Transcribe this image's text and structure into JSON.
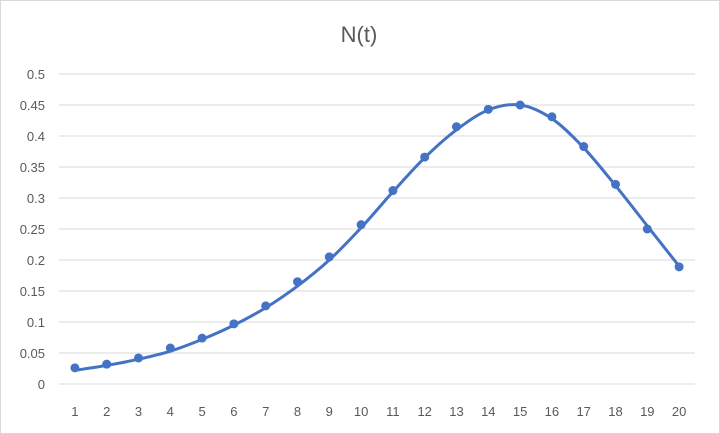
{
  "chart_data": {
    "type": "scatter",
    "title": "N(t)",
    "xlabel": "",
    "ylabel": "",
    "x": [
      1,
      2,
      3,
      4,
      5,
      6,
      7,
      8,
      9,
      10,
      11,
      12,
      13,
      14,
      15,
      16,
      17,
      18,
      19,
      20
    ],
    "xticks": [
      "1",
      "2",
      "3",
      "4",
      "5",
      "6",
      "7",
      "8",
      "9",
      "10",
      "11",
      "12",
      "13",
      "14",
      "15",
      "16",
      "17",
      "18",
      "19",
      "20"
    ],
    "yticks": [
      "0",
      "0.05",
      "0.1",
      "0.15",
      "0.2",
      "0.25",
      "0.3",
      "0.35",
      "0.4",
      "0.45",
      "0.5"
    ],
    "ylim": [
      0,
      0.5
    ],
    "grid": true,
    "series": [
      {
        "kind": "markers",
        "color": "#4472c4",
        "values": [
          0.026,
          0.032,
          0.042,
          0.058,
          0.074,
          0.097,
          0.126,
          0.165,
          0.205,
          0.257,
          0.312,
          0.366,
          0.415,
          0.443,
          0.45,
          0.431,
          0.383,
          0.322,
          0.25,
          0.189
        ]
      },
      {
        "kind": "line",
        "color": "#4472c4",
        "values": [
          0.022,
          0.03,
          0.04,
          0.053,
          0.072,
          0.095,
          0.123,
          0.158,
          0.2,
          0.252,
          0.31,
          0.365,
          0.41,
          0.442,
          0.45,
          0.428,
          0.381,
          0.32,
          0.255,
          0.19
        ]
      }
    ]
  }
}
